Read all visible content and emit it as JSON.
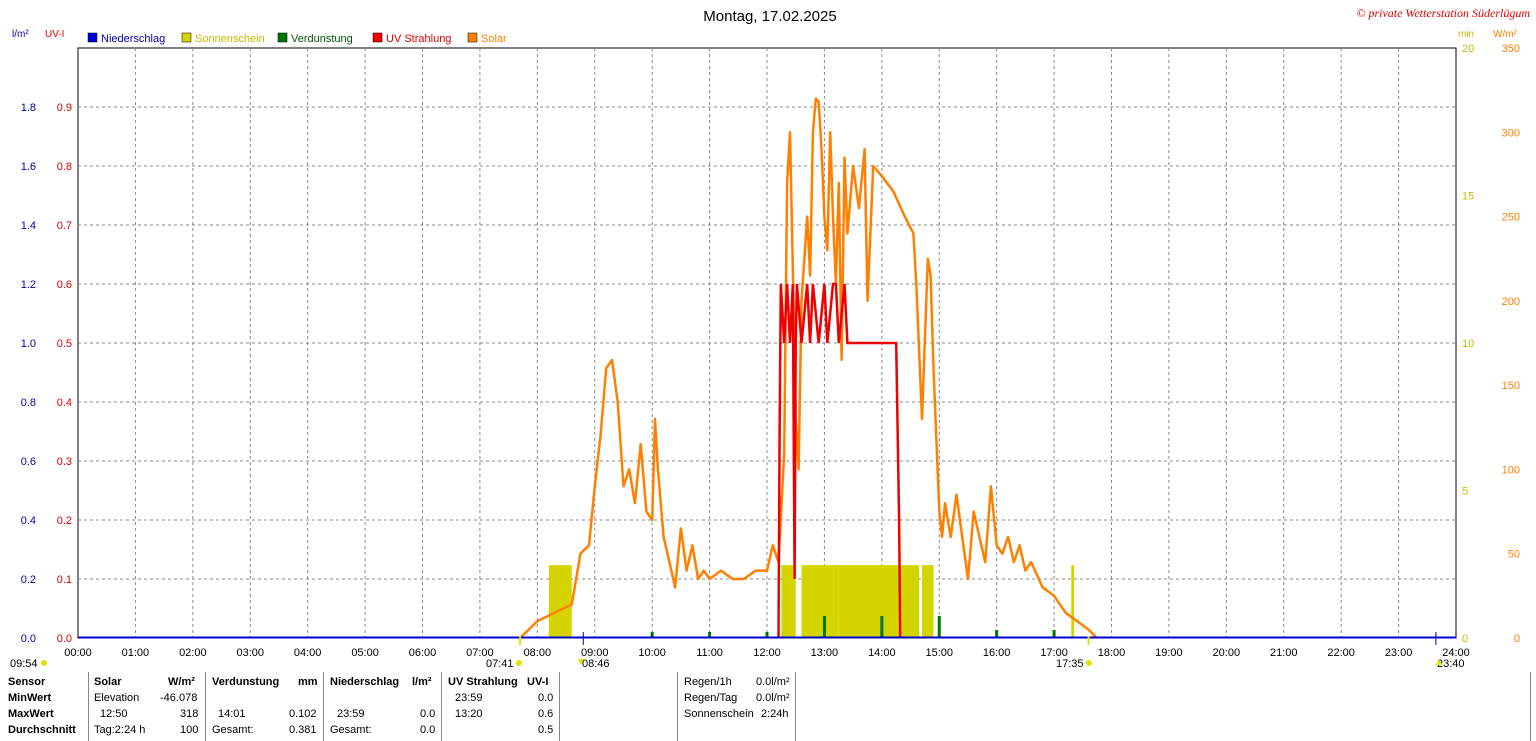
{
  "title": "Montag, 17.02.2025",
  "copyright": "© private Wetterstation Süderlügum",
  "units": {
    "left1": "l/m²",
    "left2": "UV-I",
    "right1": "min",
    "right2": "W/m²"
  },
  "colors": {
    "niederschlag": "#0000dd",
    "sonnenschein": "#d4d400",
    "verdunstung": "#007700",
    "uv": "#ee0000",
    "solar": "#ff8000",
    "grid": "#888888"
  },
  "legend": [
    {
      "name": "Niederschlag",
      "color": "#0000dd"
    },
    {
      "name": "Sonnenschein",
      "color": "#d4d400"
    },
    {
      "name": "Verdunstung",
      "color": "#007700"
    },
    {
      "name": "UV Strahlung",
      "color": "#ee0000"
    },
    {
      "name": "Solar",
      "color": "#ff8000"
    }
  ],
  "markers": {
    "left_time": "09:54",
    "sunrise": "07:41",
    "elev_max": "08:46",
    "sunset": "17:35",
    "right_time": "23:40"
  },
  "chart_data": {
    "type": "line",
    "x_ticks": [
      "00:00",
      "01:00",
      "02:00",
      "03:00",
      "04:00",
      "05:00",
      "06:00",
      "07:00",
      "08:00",
      "09:00",
      "10:00",
      "11:00",
      "12:00",
      "13:00",
      "14:00",
      "15:00",
      "16:00",
      "17:00",
      "18:00",
      "19:00",
      "20:00",
      "21:00",
      "22:00",
      "23:00",
      "24:00"
    ],
    "axes": {
      "niederschlag": {
        "ticks": [
          "0.0",
          "0.2",
          "0.4",
          "0.6",
          "0.8",
          "1.0",
          "1.2",
          "1.4",
          "1.6",
          "1.8"
        ],
        "range": [
          0,
          2
        ]
      },
      "uv": {
        "ticks": [
          "0.0",
          "0.1",
          "0.2",
          "0.3",
          "0.4",
          "0.5",
          "0.6",
          "0.7",
          "0.8",
          "0.9"
        ],
        "range": [
          0,
          1
        ]
      },
      "sonnenschein": {
        "ticks": [
          "0",
          "5",
          "10",
          "15",
          "20"
        ],
        "range": [
          0,
          20
        ]
      },
      "solar": {
        "ticks": [
          "0",
          "50",
          "100",
          "150",
          "200",
          "250",
          "300",
          "350"
        ],
        "range": [
          0,
          350
        ]
      }
    },
    "series": [
      {
        "name": "Solar",
        "unit": "W/m²",
        "points": [
          [
            7.7,
            0
          ],
          [
            7.85,
            5
          ],
          [
            8.0,
            10
          ],
          [
            8.3,
            15
          ],
          [
            8.6,
            20
          ],
          [
            8.75,
            50
          ],
          [
            8.9,
            55
          ],
          [
            9.0,
            90
          ],
          [
            9.1,
            120
          ],
          [
            9.2,
            160
          ],
          [
            9.3,
            165
          ],
          [
            9.4,
            140
          ],
          [
            9.5,
            90
          ],
          [
            9.6,
            100
          ],
          [
            9.7,
            80
          ],
          [
            9.8,
            115
          ],
          [
            9.9,
            75
          ],
          [
            10.0,
            70
          ],
          [
            10.05,
            130
          ],
          [
            10.1,
            100
          ],
          [
            10.2,
            60
          ],
          [
            10.3,
            45
          ],
          [
            10.4,
            30
          ],
          [
            10.5,
            65
          ],
          [
            10.6,
            40
          ],
          [
            10.7,
            55
          ],
          [
            10.8,
            35
          ],
          [
            10.9,
            40
          ],
          [
            11.0,
            35
          ],
          [
            11.2,
            40
          ],
          [
            11.4,
            35
          ],
          [
            11.6,
            35
          ],
          [
            11.8,
            40
          ],
          [
            12.0,
            40
          ],
          [
            12.1,
            55
          ],
          [
            12.2,
            45
          ],
          [
            12.3,
            110
          ],
          [
            12.35,
            270
          ],
          [
            12.4,
            300
          ],
          [
            12.45,
            220
          ],
          [
            12.5,
            130
          ],
          [
            12.55,
            100
          ],
          [
            12.6,
            200
          ],
          [
            12.7,
            250
          ],
          [
            12.75,
            215
          ],
          [
            12.8,
            300
          ],
          [
            12.85,
            320
          ],
          [
            12.9,
            318
          ],
          [
            12.95,
            290
          ],
          [
            13.0,
            250
          ],
          [
            13.05,
            230
          ],
          [
            13.1,
            300
          ],
          [
            13.15,
            250
          ],
          [
            13.2,
            210
          ],
          [
            13.25,
            270
          ],
          [
            13.3,
            165
          ],
          [
            13.35,
            285
          ],
          [
            13.4,
            240
          ],
          [
            13.5,
            280
          ],
          [
            13.6,
            255
          ],
          [
            13.7,
            290
          ],
          [
            13.75,
            200
          ],
          [
            13.85,
            280
          ],
          [
            14.0,
            274
          ],
          [
            14.2,
            265
          ],
          [
            14.4,
            250
          ],
          [
            14.55,
            240
          ],
          [
            14.6,
            210
          ],
          [
            14.7,
            130
          ],
          [
            14.8,
            225
          ],
          [
            14.85,
            215
          ],
          [
            14.9,
            160
          ],
          [
            15.0,
            75
          ],
          [
            15.05,
            60
          ],
          [
            15.1,
            80
          ],
          [
            15.2,
            60
          ],
          [
            15.3,
            85
          ],
          [
            15.4,
            60
          ],
          [
            15.5,
            35
          ],
          [
            15.6,
            75
          ],
          [
            15.7,
            60
          ],
          [
            15.8,
            45
          ],
          [
            15.9,
            90
          ],
          [
            16.0,
            55
          ],
          [
            16.1,
            50
          ],
          [
            16.2,
            60
          ],
          [
            16.3,
            45
          ],
          [
            16.4,
            55
          ],
          [
            16.5,
            40
          ],
          [
            16.6,
            45
          ],
          [
            16.8,
            30
          ],
          [
            17.0,
            25
          ],
          [
            17.2,
            15
          ],
          [
            17.4,
            10
          ],
          [
            17.6,
            5
          ],
          [
            17.75,
            0
          ]
        ]
      },
      {
        "name": "UV Strahlung",
        "unit": "UV-I",
        "points": [
          [
            12.2,
            0
          ],
          [
            12.22,
            0.35
          ],
          [
            12.24,
            0.6
          ],
          [
            12.3,
            0.5
          ],
          [
            12.35,
            0.6
          ],
          [
            12.4,
            0.5
          ],
          [
            12.45,
            0.6
          ],
          [
            12.48,
            0.1
          ],
          [
            12.5,
            0.5
          ],
          [
            12.52,
            0.6
          ],
          [
            12.6,
            0.5
          ],
          [
            12.7,
            0.6
          ],
          [
            12.75,
            0.5
          ],
          [
            12.8,
            0.6
          ],
          [
            12.9,
            0.5
          ],
          [
            13.0,
            0.6
          ],
          [
            13.05,
            0.5
          ],
          [
            13.15,
            0.6
          ],
          [
            13.2,
            0.6
          ],
          [
            13.25,
            0.5
          ],
          [
            13.35,
            0.6
          ],
          [
            13.4,
            0.5
          ],
          [
            14.25,
            0.5
          ],
          [
            14.3,
            0.2
          ],
          [
            14.32,
            0
          ]
        ]
      }
    ],
    "sunshine_blocks": [
      [
        8.2,
        8.6
      ],
      [
        12.25,
        12.5
      ],
      [
        12.6,
        13.25
      ],
      [
        13.25,
        14.65
      ],
      [
        14.7,
        14.9
      ],
      [
        17.3,
        17.35
      ]
    ],
    "evaporation_ticks": [
      10.0,
      11.0,
      12.0,
      13.0,
      14.0,
      15.0,
      16.0,
      17.0
    ],
    "evaporation_values": [
      0.5,
      0.5,
      0.5,
      4.5,
      4.5,
      4.5,
      1.0,
      1.0
    ]
  },
  "stats": {
    "sensor_label": "Sensor",
    "min_label": "MinWert",
    "max_label": "MaxWert",
    "avg_label": "Durchschnitt",
    "solar": {
      "head": "Solar",
      "unit": "W/m²",
      "min_name": "Elevation",
      "min_value": "-46.078",
      "max_time": "12:50",
      "max_value": "318",
      "avg_name": "Tag:2:24 h",
      "avg_value": "100"
    },
    "verdunstung": {
      "head": "Verdunstung",
      "unit": "mm",
      "max_time": "14:01",
      "max_value": "0.102",
      "avg_name": "Gesamt:",
      "avg_value": "0.381"
    },
    "niederschlag": {
      "head": "Niederschlag",
      "unit": "l/m²",
      "max_time": "23:59",
      "max_value": "0.0",
      "avg_name": "Gesamt:",
      "avg_value": "0.0"
    },
    "uv": {
      "head": "UV Strahlung",
      "unit": "UV-I",
      "min_time": "23:59",
      "min_value": "0.0",
      "max_time": "13:20",
      "max_value": "0.6",
      "avg_value": "0.5"
    },
    "extra": {
      "regen1h_label": "Regen/1h",
      "regen1h_value": "0.0l/m²",
      "regentag_label": "Regen/Tag",
      "regentag_value": "0.0l/m²",
      "sonne_label": "Sonnenschein",
      "sonne_value": "2:24h"
    }
  }
}
